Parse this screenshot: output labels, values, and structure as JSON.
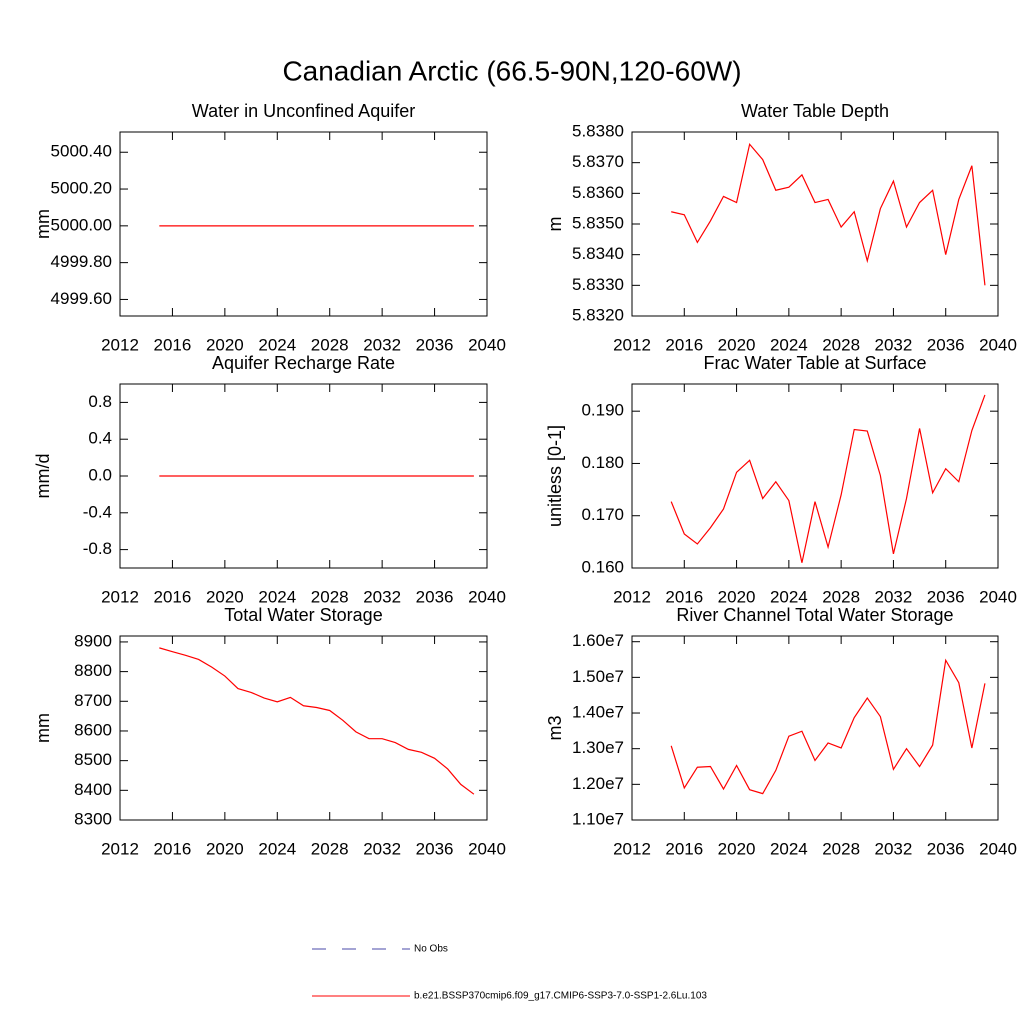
{
  "title": "Canadian Arctic (66.5-90N,120-60W)",
  "legend": [
    {
      "name": "No Obs",
      "color": "#4a4aa8",
      "dashed": true
    },
    {
      "name": "b.e21.BSSP370cmip6.f09_g17.CMIP6-SSP3-7.0-SSP1-2.6Lu.103",
      "color": "#ff0000",
      "dashed": false
    }
  ],
  "chart_data": [
    {
      "type": "line",
      "title": "Water in Unconfined Aquifer",
      "y_label": "mm",
      "color": "#ff0000",
      "x": [
        2015,
        2016,
        2017,
        2018,
        2019,
        2020,
        2021,
        2022,
        2023,
        2024,
        2025,
        2026,
        2027,
        2028,
        2029,
        2030,
        2031,
        2032,
        2033,
        2034,
        2035,
        2036,
        2037,
        2038,
        2039
      ],
      "values": [
        5000,
        5000,
        5000,
        5000,
        5000,
        5000,
        5000,
        5000,
        5000,
        5000,
        5000,
        5000,
        5000,
        5000,
        5000,
        5000,
        5000,
        5000,
        5000,
        5000,
        5000,
        5000,
        5000,
        5000,
        5000
      ],
      "xlim": [
        2012,
        2040
      ],
      "xticks": [
        2012,
        2016,
        2020,
        2024,
        2028,
        2032,
        2036,
        2040
      ],
      "ylim": [
        4999.51,
        5000.51
      ],
      "yticks": [
        {
          "value": 4999.6,
          "label": "4999.60"
        },
        {
          "value": 4999.8,
          "label": "4999.80"
        },
        {
          "value": 5000,
          "label": "5000.00"
        },
        {
          "value": 5000.2,
          "label": "5000.20"
        },
        {
          "value": 5000.4,
          "label": "5000.40"
        }
      ]
    },
    {
      "type": "line",
      "title": "Water Table Depth",
      "y_label": "m",
      "color": "#ff0000",
      "x": [
        2015,
        2016,
        2017,
        2018,
        2019,
        2020,
        2021,
        2022,
        2023,
        2024,
        2025,
        2026,
        2027,
        2028,
        2029,
        2030,
        2031,
        2032,
        2033,
        2034,
        2035,
        2036,
        2037,
        2038,
        2039
      ],
      "values": [
        5.8354,
        5.8353,
        5.8344,
        5.8351,
        5.8359,
        5.8357,
        5.8376,
        5.8371,
        5.8361,
        5.8362,
        5.8366,
        5.8357,
        5.8358,
        5.8349,
        5.8354,
        5.8338,
        5.8355,
        5.8364,
        5.8349,
        5.8357,
        5.8361,
        5.834,
        5.8358,
        5.8369,
        5.833
      ],
      "xlim": [
        2012,
        2040
      ],
      "xticks": [
        2012,
        2016,
        2020,
        2024,
        2028,
        2032,
        2036,
        2040
      ],
      "ylim": [
        5.832,
        5.838
      ],
      "yticks": [
        {
          "value": 5.832,
          "label": "5.8320"
        },
        {
          "value": 5.833,
          "label": "5.8330"
        },
        {
          "value": 5.834,
          "label": "5.8340"
        },
        {
          "value": 5.835,
          "label": "5.8350"
        },
        {
          "value": 5.836,
          "label": "5.8360"
        },
        {
          "value": 5.837,
          "label": "5.8370"
        },
        {
          "value": 5.838,
          "label": "5.8380"
        }
      ]
    },
    {
      "type": "line",
      "title": "Aquifer Recharge Rate",
      "y_label": "mm/d",
      "color": "#ff0000",
      "x": [
        2015,
        2016,
        2017,
        2018,
        2019,
        2020,
        2021,
        2022,
        2023,
        2024,
        2025,
        2026,
        2027,
        2028,
        2029,
        2030,
        2031,
        2032,
        2033,
        2034,
        2035,
        2036,
        2037,
        2038,
        2039
      ],
      "values": [
        0,
        0,
        0,
        0,
        0,
        0,
        0,
        0,
        0,
        0,
        0,
        0,
        0,
        0,
        0,
        0,
        0,
        0,
        0,
        0,
        0,
        0,
        0,
        0,
        0
      ],
      "xlim": [
        2012,
        2040
      ],
      "xticks": [
        2012,
        2016,
        2020,
        2024,
        2028,
        2032,
        2036,
        2040
      ],
      "ylim": [
        -1,
        1
      ],
      "yticks": [
        -0.8,
        -0.4,
        {
          "value": 0,
          "label": "0.0"
        },
        0.4,
        0.8
      ]
    },
    {
      "type": "line",
      "title": "Frac Water Table at Surface",
      "y_label": "unitless [0-1]",
      "color": "#ff0000",
      "x": [
        2015,
        2016,
        2017,
        2018,
        2019,
        2020,
        2021,
        2022,
        2023,
        2024,
        2025,
        2026,
        2027,
        2028,
        2029,
        2030,
        2031,
        2032,
        2033,
        2034,
        2035,
        2036,
        2037,
        2038,
        2039
      ],
      "values": [
        0.1727,
        0.1665,
        0.1646,
        0.1677,
        0.1713,
        0.1783,
        0.1806,
        0.1733,
        0.1765,
        0.1729,
        0.161,
        0.1727,
        0.164,
        0.174,
        0.1865,
        0.1862,
        0.1777,
        0.1627,
        0.1733,
        0.1867,
        0.1744,
        0.179,
        0.1765,
        0.1863,
        0.1931
      ],
      "xlim": [
        2012,
        2040
      ],
      "xticks": [
        2012,
        2016,
        2020,
        2024,
        2028,
        2032,
        2036,
        2040
      ],
      "ylim": [
        0.16,
        0.1952
      ],
      "yticks": [
        {
          "value": 0.16,
          "label": "0.160"
        },
        {
          "value": 0.17,
          "label": "0.170"
        },
        {
          "value": 0.18,
          "label": "0.180"
        },
        {
          "value": 0.19,
          "label": "0.190"
        }
      ]
    },
    {
      "type": "line",
      "title": "Total Water Storage",
      "y_label": "mm",
      "color": "#ff0000",
      "x": [
        2015,
        2016,
        2017,
        2018,
        2019,
        2020,
        2021,
        2022,
        2023,
        2024,
        2025,
        2026,
        2027,
        2028,
        2029,
        2030,
        2031,
        2032,
        2033,
        2034,
        2035,
        2036,
        2037,
        2038,
        2039
      ],
      "values": [
        8880,
        8867,
        8855,
        8841,
        8815,
        8785,
        8743,
        8730,
        8711,
        8698,
        8713,
        8685,
        8679,
        8669,
        8636,
        8597,
        8574,
        8574,
        8561,
        8538,
        8528,
        8508,
        8472,
        8420,
        8387
      ],
      "xlim": [
        2012,
        2040
      ],
      "xticks": [
        2012,
        2016,
        2020,
        2024,
        2028,
        2032,
        2036,
        2040
      ],
      "ylim": [
        8300,
        8920
      ],
      "yticks": [
        8300,
        8400,
        8500,
        8600,
        8700,
        8800,
        8900
      ]
    },
    {
      "type": "line",
      "title": "River Channel Total Water Storage",
      "y_label": "m3",
      "color": "#ff0000",
      "x": [
        2015,
        2016,
        2017,
        2018,
        2019,
        2020,
        2021,
        2022,
        2023,
        2024,
        2025,
        2026,
        2027,
        2028,
        2029,
        2030,
        2031,
        2032,
        2033,
        2034,
        2035,
        2036,
        2037,
        2038,
        2039
      ],
      "values": [
        13080000,
        11900000,
        12480000,
        12500000,
        11870000,
        12530000,
        11850000,
        11740000,
        12390000,
        13350000,
        13490000,
        12670000,
        13160000,
        13020000,
        13870000,
        14420000,
        13900000,
        12420000,
        13000000,
        12500000,
        13100000,
        15480000,
        14850000,
        13020000,
        14830000
      ],
      "xlim": [
        2012,
        2040
      ],
      "xticks": [
        2012,
        2016,
        2020,
        2024,
        2028,
        2032,
        2036,
        2040
      ],
      "ylim": [
        11000000,
        16160000
      ],
      "yticks": [
        {
          "value": 11000000,
          "label": "1.10e7"
        },
        {
          "value": 12000000,
          "label": "1.20e7"
        },
        {
          "value": 13000000,
          "label": "1.30e7"
        },
        {
          "value": 14000000,
          "label": "1.40e7"
        },
        {
          "value": 15000000,
          "label": "1.50e7"
        },
        {
          "value": 16000000,
          "label": "1.60e7"
        }
      ]
    }
  ]
}
